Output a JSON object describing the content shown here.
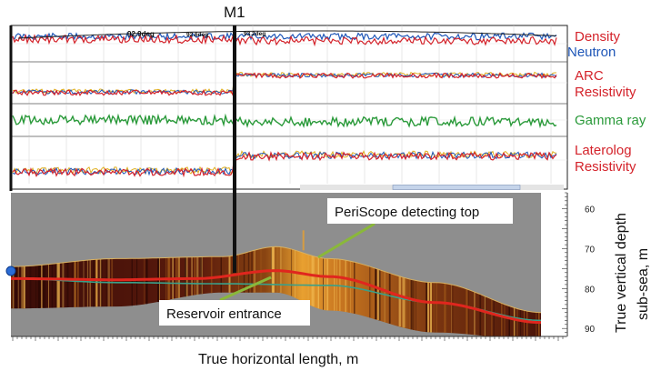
{
  "chart_data": {
    "type": "line",
    "marker": "M1",
    "tracks": [
      {
        "name": "density-neutron",
        "labels": [
          {
            "text": "Density",
            "color": "#d4232b"
          },
          {
            "text": "Neutron",
            "color": "#1f57b8"
          }
        ],
        "annotations": [
          "92.9deg",
          "92.6deg",
          "93.2deg"
        ]
      },
      {
        "name": "arc-resistivity",
        "labels": [
          {
            "text": "ARC",
            "color": "#d4232b"
          },
          {
            "text": "Resistivity",
            "color": "#d4232b"
          }
        ]
      },
      {
        "name": "gamma-ray",
        "labels": [
          {
            "text": "Gamma ray",
            "color": "#2a9a3a"
          }
        ]
      },
      {
        "name": "laterolog-resistivity",
        "labels": [
          {
            "text": "Laterolog",
            "color": "#d4232b"
          },
          {
            "text": "Resistivity",
            "color": "#d4232b"
          }
        ]
      }
    ],
    "section": {
      "xlabel": "True horizontal length, m",
      "ylabel_line1": "True vertical depth",
      "ylabel_line2": "sub-sea, m",
      "yticks": [
        60,
        70,
        80,
        90
      ],
      "ylim": [
        56,
        92
      ],
      "callouts": [
        {
          "text": "PeriScope detecting top"
        },
        {
          "text": "Reservoir entrance"
        }
      ],
      "reservoir_top": {
        "x": [
          0,
          0.2,
          0.4,
          0.5,
          0.6,
          0.8,
          1.0
        ],
        "depth": [
          74.5,
          72.5,
          72.0,
          69.5,
          72.5,
          78.5,
          86.0
        ]
      },
      "reservoir_base": {
        "x": [
          0,
          0.2,
          0.4,
          0.5,
          0.6,
          0.8,
          1.0
        ],
        "depth": [
          85.0,
          84.5,
          81.0,
          81.0,
          85.5,
          91.0,
          93.0
        ]
      },
      "well_path": {
        "x": [
          0,
          0.2,
          0.35,
          0.5,
          0.6,
          0.8,
          1.0
        ],
        "depth": [
          77.5,
          77.8,
          77.5,
          75.5,
          77.0,
          83.5,
          88.5
        ]
      },
      "reference_path": {
        "x": [
          0,
          0.2,
          0.4,
          0.6,
          0.8,
          1.0
        ],
        "depth": [
          77.5,
          78.5,
          78.8,
          79.2,
          83.5,
          88.0
        ]
      }
    }
  }
}
